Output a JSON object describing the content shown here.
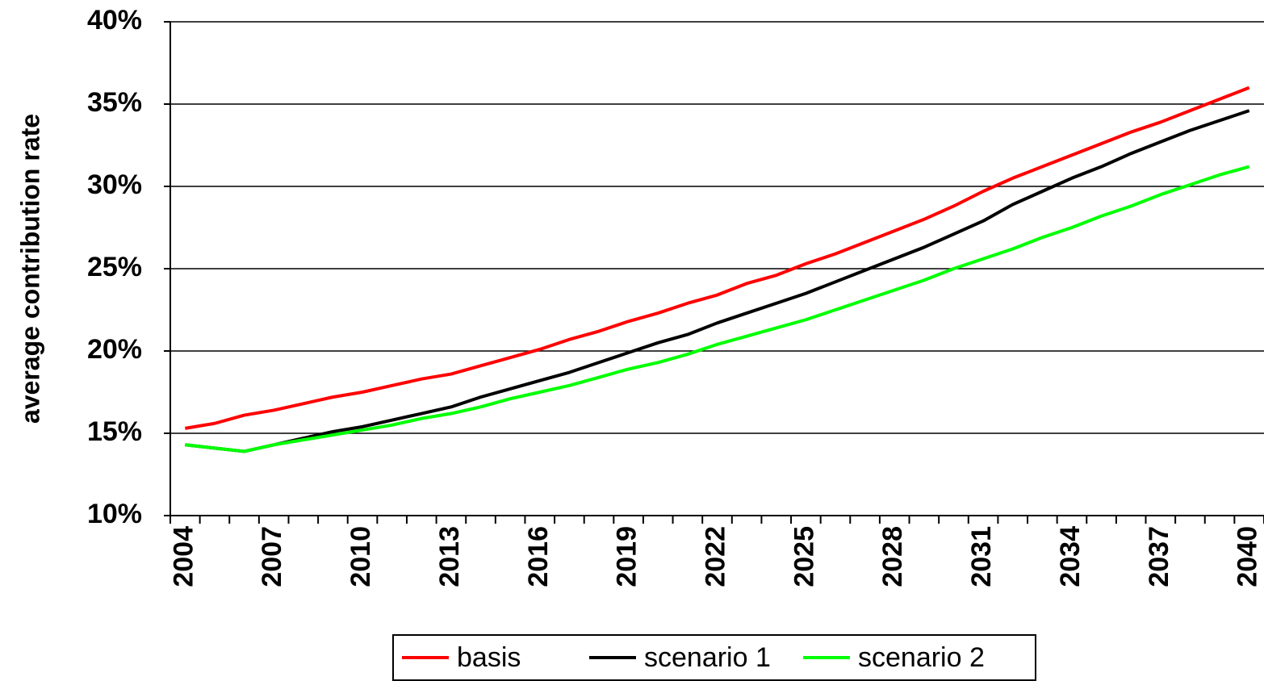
{
  "chart_data": {
    "type": "line",
    "y_label": "average contribution rate",
    "categories": [
      "2004",
      null,
      null,
      "2007",
      null,
      null,
      "2010",
      null,
      null,
      "2013",
      null,
      null,
      "2016",
      null,
      null,
      "2019",
      null,
      null,
      "2022",
      null,
      null,
      "2025",
      null,
      null,
      "2028",
      null,
      null,
      "2031",
      null,
      null,
      "2034",
      null,
      null,
      "2037",
      null,
      null,
      "2040"
    ],
    "series": [
      {
        "name": "basis",
        "color": "#ff0000",
        "values": [
          15.3,
          15.6,
          16.1,
          16.4,
          16.8,
          17.2,
          17.5,
          17.9,
          18.3,
          18.6,
          19.1,
          19.6,
          20.1,
          20.7,
          21.2,
          21.8,
          22.3,
          22.9,
          23.4,
          24.1,
          24.6,
          25.3,
          25.9,
          26.6,
          27.3,
          28.0,
          28.8,
          29.7,
          30.5,
          31.2,
          31.9,
          32.6,
          33.3,
          33.9,
          34.6,
          35.3,
          36.0
        ]
      },
      {
        "name": "scenario 1",
        "color": "#000000",
        "values": [
          14.3,
          14.1,
          13.9,
          14.3,
          14.7,
          15.1,
          15.4,
          15.8,
          16.2,
          16.6,
          17.2,
          17.7,
          18.2,
          18.7,
          19.3,
          19.9,
          20.5,
          21.0,
          21.7,
          22.3,
          22.9,
          23.5,
          24.2,
          24.9,
          25.6,
          26.3,
          27.1,
          27.9,
          28.9,
          29.7,
          30.5,
          31.2,
          32.0,
          32.7,
          33.4,
          34.0,
          34.6
        ]
      },
      {
        "name": "scenario 2",
        "color": "#00ff00",
        "values": [
          14.3,
          14.1,
          13.9,
          14.3,
          14.6,
          14.9,
          15.2,
          15.5,
          15.9,
          16.2,
          16.6,
          17.1,
          17.5,
          17.9,
          18.4,
          18.9,
          19.3,
          19.8,
          20.4,
          20.9,
          21.4,
          21.9,
          22.5,
          23.1,
          23.7,
          24.3,
          25.0,
          25.6,
          26.2,
          26.9,
          27.5,
          28.2,
          28.8,
          29.5,
          30.1,
          30.7,
          31.2
        ]
      }
    ],
    "ylim": [
      10,
      40
    ],
    "yticks": [
      {
        "value": 10,
        "label": "10%"
      },
      {
        "value": 15,
        "label": "15%"
      },
      {
        "value": 20,
        "label": "20%"
      },
      {
        "value": 25,
        "label": "25%"
      },
      {
        "value": 30,
        "label": "30%"
      },
      {
        "value": 35,
        "label": "35%"
      },
      {
        "value": 40,
        "label": "40%"
      }
    ],
    "grid": true,
    "legend": "bottom"
  }
}
